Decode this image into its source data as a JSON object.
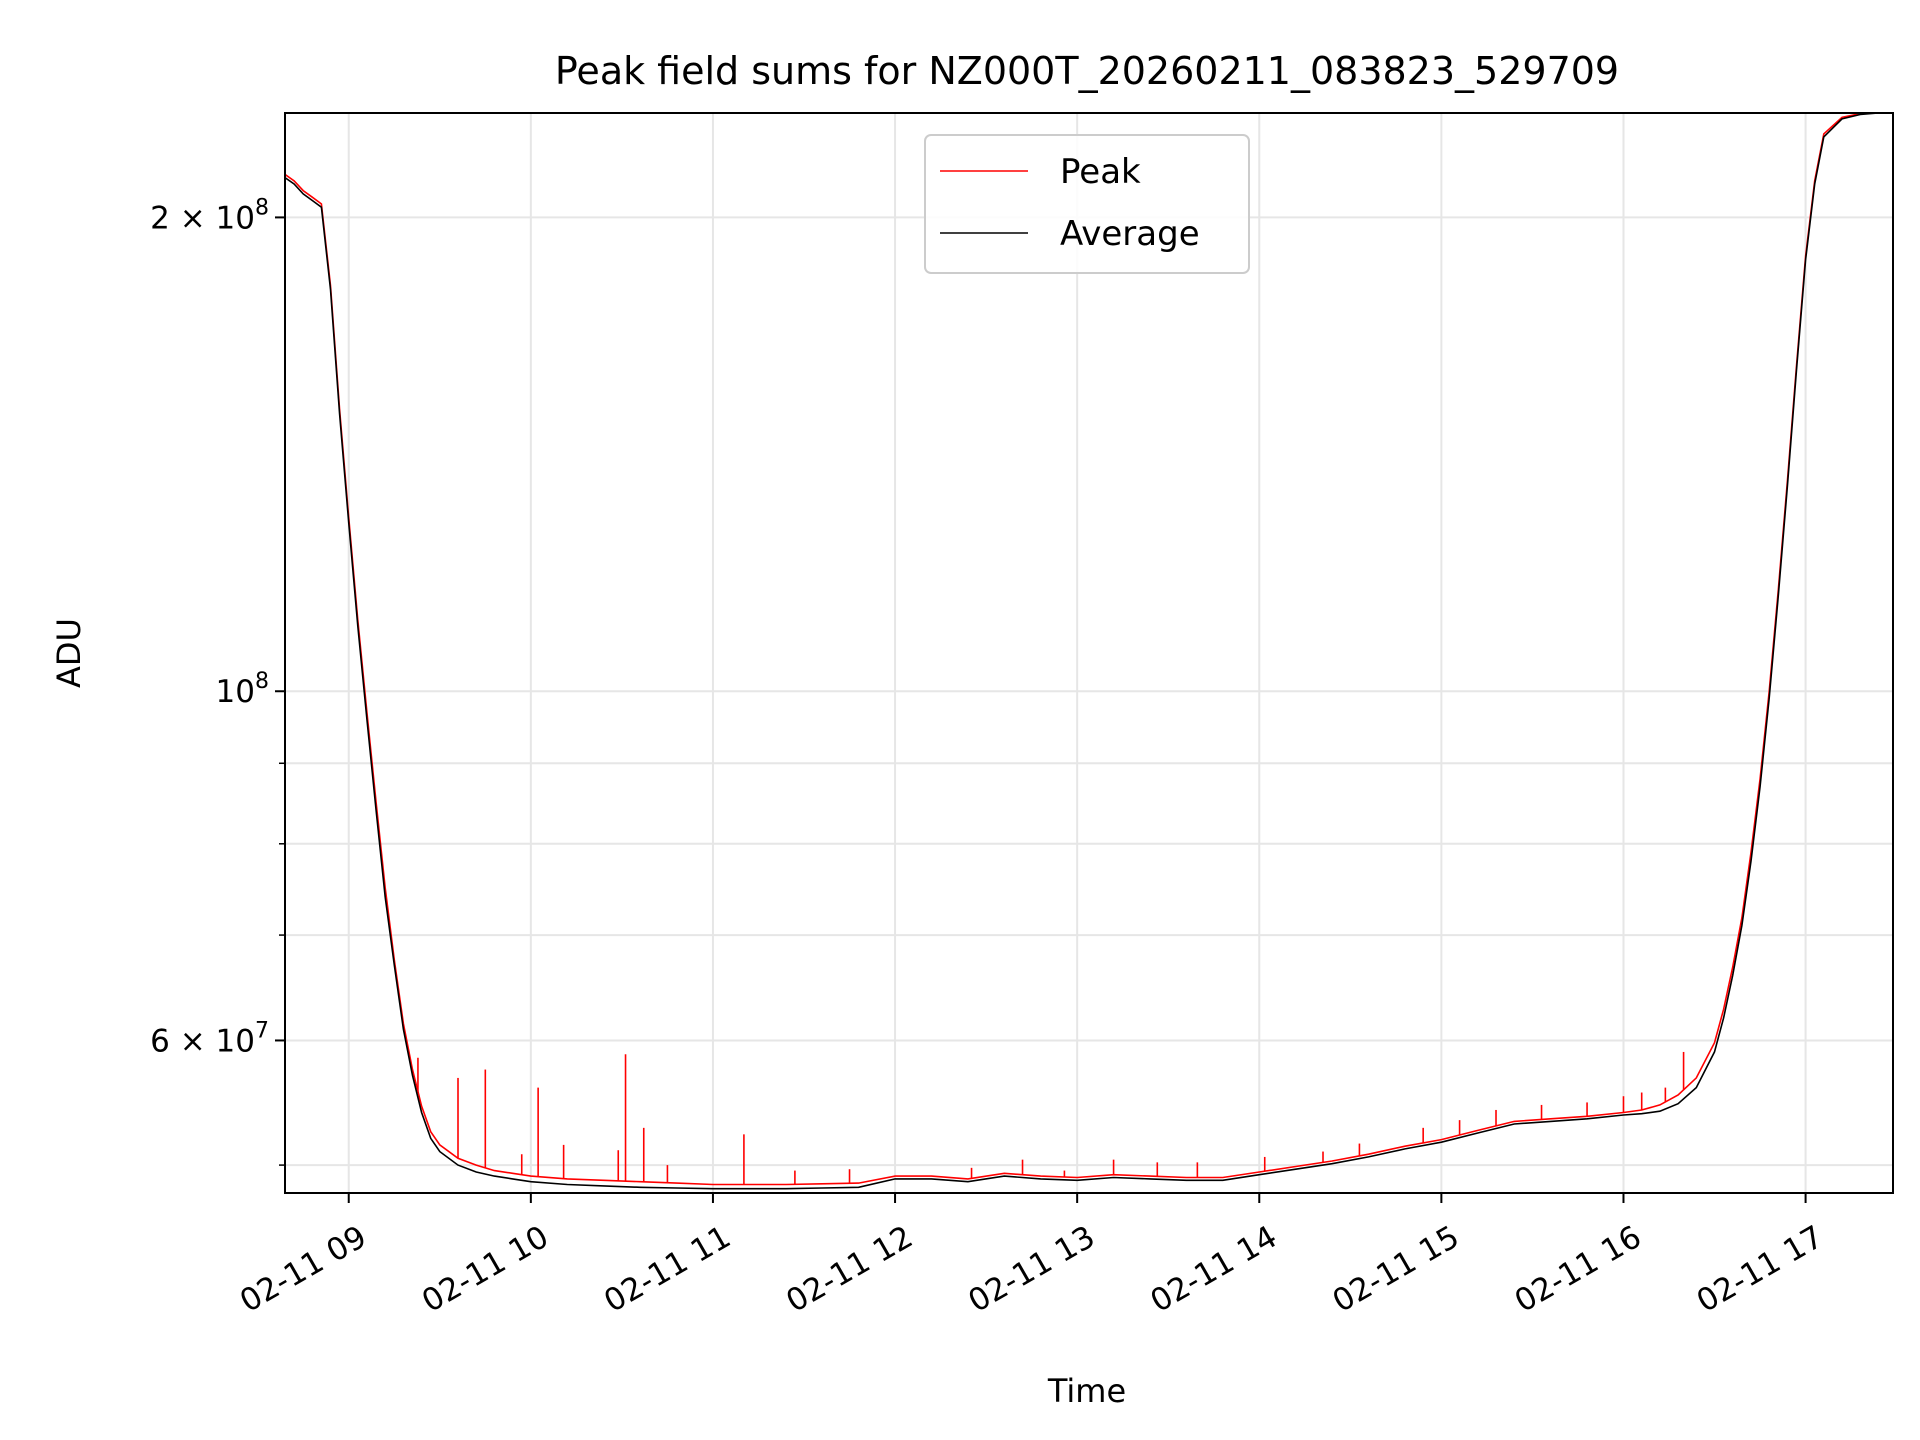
{
  "chart_data": {
    "type": "line",
    "title": "Peak field sums for NZ000T_20260211_083823_529709",
    "xlabel": "Time",
    "ylabel": "ADU",
    "yscale": "log",
    "grid": true,
    "legend_position": "top-center",
    "xlim": [
      8.65,
      17.48
    ],
    "ylim": [
      48000000,
      233000000
    ],
    "x_ticks": [
      9,
      10,
      11,
      12,
      13,
      14,
      15,
      16,
      17
    ],
    "x_tick_labels": [
      "02-11 09",
      "02-11 10",
      "02-11 11",
      "02-11 12",
      "02-11 13",
      "02-11 14",
      "02-11 15",
      "02-11 16",
      "02-11 17"
    ],
    "y_major_ticks": [
      {
        "value": 200000000,
        "base": "2 × 10",
        "exp": "8"
      },
      {
        "value": 100000000,
        "base": "10",
        "exp": "8"
      },
      {
        "value": 60000000,
        "base": "6 × 10",
        "exp": "7"
      }
    ],
    "y_minor_ticks": [
      50000000,
      70000000,
      80000000,
      90000000
    ],
    "series": [
      {
        "name": "Average",
        "color": "#000000",
        "x": [
          8.65,
          8.7,
          8.75,
          8.8,
          8.85,
          8.9,
          8.95,
          9.0,
          9.05,
          9.1,
          9.15,
          9.2,
          9.25,
          9.3,
          9.35,
          9.4,
          9.45,
          9.5,
          9.6,
          9.7,
          9.8,
          9.9,
          10.0,
          10.2,
          10.4,
          10.6,
          10.8,
          11.0,
          11.2,
          11.4,
          11.6,
          11.8,
          12.0,
          12.2,
          12.4,
          12.6,
          12.8,
          13.0,
          13.2,
          13.4,
          13.6,
          13.8,
          14.0,
          14.2,
          14.4,
          14.6,
          14.8,
          15.0,
          15.2,
          15.4,
          15.6,
          15.8,
          16.0,
          16.1,
          16.2,
          16.3,
          16.4,
          16.5,
          16.55,
          16.6,
          16.65,
          16.7,
          16.75,
          16.8,
          16.85,
          16.9,
          16.95,
          17.0,
          17.05,
          17.1,
          17.2,
          17.3,
          17.4,
          17.48
        ],
        "y": [
          212000000,
          210000000,
          207000000,
          205000000,
          203000000,
          180000000,
          150000000,
          128000000,
          110000000,
          96000000,
          84000000,
          74000000,
          67000000,
          61000000,
          57000000,
          54000000,
          52000000,
          51000000,
          50000000,
          49500000,
          49200000,
          49000000,
          48800000,
          48600000,
          48500000,
          48400000,
          48350000,
          48300000,
          48300000,
          48300000,
          48350000,
          48400000,
          49000000,
          49000000,
          48800000,
          49200000,
          49000000,
          48900000,
          49100000,
          49000000,
          48900000,
          48900000,
          49300000,
          49700000,
          50100000,
          50600000,
          51200000,
          51700000,
          52400000,
          53100000,
          53300000,
          53500000,
          53800000,
          53900000,
          54100000,
          54700000,
          56000000,
          59000000,
          62000000,
          66000000,
          71000000,
          78000000,
          87000000,
          99000000,
          115000000,
          135000000,
          160000000,
          188000000,
          210000000,
          225000000,
          231000000,
          232500000,
          233000000,
          233000000
        ]
      },
      {
        "name": "Peak",
        "color": "#ff0000",
        "x": [
          8.65,
          8.7,
          8.75,
          8.8,
          8.85,
          8.9,
          8.95,
          9.0,
          9.05,
          9.1,
          9.15,
          9.2,
          9.25,
          9.3,
          9.35,
          9.4,
          9.45,
          9.5,
          9.6,
          9.7,
          9.8,
          9.9,
          10.0,
          10.2,
          10.4,
          10.6,
          10.8,
          11.0,
          11.2,
          11.4,
          11.6,
          11.8,
          12.0,
          12.2,
          12.4,
          12.6,
          12.8,
          13.0,
          13.2,
          13.4,
          13.6,
          13.8,
          14.0,
          14.2,
          14.4,
          14.6,
          14.8,
          15.0,
          15.2,
          15.4,
          15.6,
          15.8,
          16.0,
          16.1,
          16.2,
          16.3,
          16.4,
          16.5,
          16.55,
          16.6,
          16.65,
          16.7,
          16.75,
          16.8,
          16.85,
          16.9,
          16.95,
          17.0,
          17.05,
          17.1,
          17.2,
          17.3,
          17.4,
          17.48
        ],
        "y": [
          213000000,
          211000000,
          208000000,
          206000000,
          204000000,
          181000000,
          151000000,
          129000000,
          111000000,
          97000000,
          85000000,
          75000000,
          67500000,
          61500000,
          57500000,
          54500000,
          52500000,
          51500000,
          50500000,
          50000000,
          49600000,
          49400000,
          49200000,
          49000000,
          48900000,
          48800000,
          48700000,
          48600000,
          48600000,
          48600000,
          48650000,
          48700000,
          49200000,
          49200000,
          49000000,
          49400000,
          49200000,
          49100000,
          49300000,
          49200000,
          49100000,
          49100000,
          49500000,
          49900000,
          50300000,
          50800000,
          51400000,
          51900000,
          52600000,
          53300000,
          53500000,
          53700000,
          54000000,
          54200000,
          54600000,
          55400000,
          56800000,
          59800000,
          62800000,
          66800000,
          71800000,
          79000000,
          88000000,
          100000000,
          116000000,
          136000000,
          161000000,
          189000000,
          211000000,
          226000000,
          231500000,
          232800000,
          233000000,
          233000000
        ],
        "spikes": [
          {
            "x": 9.38,
            "y": 58500000
          },
          {
            "x": 9.6,
            "y": 56800000
          },
          {
            "x": 9.75,
            "y": 57500000
          },
          {
            "x": 9.95,
            "y": 50800000
          },
          {
            "x": 10.04,
            "y": 56000000
          },
          {
            "x": 10.18,
            "y": 51500000
          },
          {
            "x": 10.48,
            "y": 51100000
          },
          {
            "x": 10.52,
            "y": 58800000
          },
          {
            "x": 10.62,
            "y": 52800000
          },
          {
            "x": 10.75,
            "y": 50000000
          },
          {
            "x": 11.17,
            "y": 52300000
          },
          {
            "x": 11.45,
            "y": 49600000
          },
          {
            "x": 11.75,
            "y": 49700000
          },
          {
            "x": 12.42,
            "y": 49800000
          },
          {
            "x": 12.7,
            "y": 50400000
          },
          {
            "x": 12.93,
            "y": 49600000
          },
          {
            "x": 13.2,
            "y": 50400000
          },
          {
            "x": 13.44,
            "y": 50200000
          },
          {
            "x": 13.66,
            "y": 50200000
          },
          {
            "x": 14.03,
            "y": 50600000
          },
          {
            "x": 14.35,
            "y": 51000000
          },
          {
            "x": 14.55,
            "y": 51600000
          },
          {
            "x": 14.9,
            "y": 52800000
          },
          {
            "x": 15.1,
            "y": 53400000
          },
          {
            "x": 15.3,
            "y": 54200000
          },
          {
            "x": 15.55,
            "y": 54600000
          },
          {
            "x": 15.8,
            "y": 54800000
          },
          {
            "x": 16.0,
            "y": 55300000
          },
          {
            "x": 16.1,
            "y": 55600000
          },
          {
            "x": 16.23,
            "y": 56000000
          },
          {
            "x": 16.33,
            "y": 59000000
          }
        ]
      }
    ]
  }
}
